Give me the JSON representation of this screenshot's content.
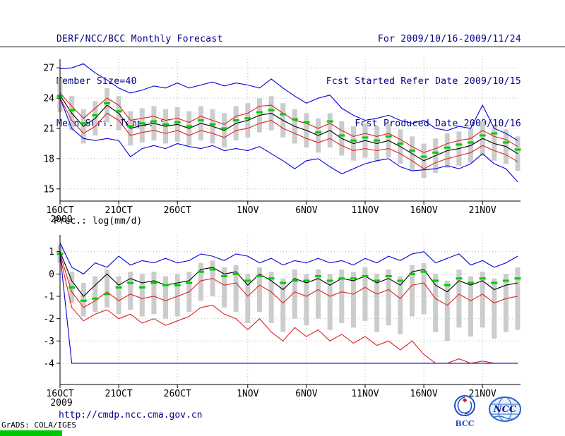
{
  "header": {
    "left": [
      "DERF/NCC/BCC Monthly Forecast",
      "Member Size=40",
      "Mean Surf. Temp.: °C"
    ],
    "right": [
      "For 2009/10/16-2009/11/24",
      "Fcst Started Refer Date 2009/10/15",
      "Fcst Produced Date 2009/10/16"
    ]
  },
  "footer": {
    "url": "http://cmdp.ncc.cma.gov.cn",
    "grads_credit": "GrADS: COLA/IGES",
    "logos": [
      {
        "name": "bcc-logo",
        "label": "BCC"
      },
      {
        "name": "ncc-logo",
        "label": "NCC"
      }
    ]
  },
  "colors": {
    "header_text": "#00008b",
    "url_text": "#00008b",
    "grid": "#b8b8b8",
    "axis": "#000000",
    "member_bar": "#cccccc",
    "mean_line": "#000000",
    "bound_red": "#dd2222",
    "extreme_blue": "#0000dd",
    "marker_green": "#00cc00",
    "stamp_green": "#00c800",
    "logo_blue": "#2050c0"
  },
  "chart_data": [
    {
      "name": "surface-temperature",
      "type": "line",
      "panel_label": "Mean Surf. Temp.: °C",
      "x_dates": [
        "16OCT",
        "17OCT",
        "18OCT",
        "19OCT",
        "20OCT",
        "21OCT",
        "22OCT",
        "23OCT",
        "24OCT",
        "25OCT",
        "26OCT",
        "27OCT",
        "28OCT",
        "29OCT",
        "30OCT",
        "31OCT",
        "1NOV",
        "2NOV",
        "3NOV",
        "4NOV",
        "5NOV",
        "6NOV",
        "7NOV",
        "8NOV",
        "9NOV",
        "10NOV",
        "11NOV",
        "12NOV",
        "13NOV",
        "14NOV",
        "15NOV",
        "16NOV",
        "17NOV",
        "18NOV",
        "19NOV",
        "20NOV",
        "21NOV",
        "22NOV",
        "23NOV",
        "24NOV"
      ],
      "x_tick_indices": [
        0,
        5,
        10,
        16,
        21,
        26,
        31,
        36
      ],
      "x_tick_labels": [
        "16OCT",
        "21OCT",
        "26OCT",
        "1NOV",
        "6NOV",
        "11NOV",
        "16NOV",
        "21NOV"
      ],
      "year_label": "2009",
      "ylim": [
        13.8,
        27.85
      ],
      "yticks": [
        15,
        18,
        21,
        24,
        27
      ],
      "grid": true,
      "series": [
        {
          "name": "ensemble-max",
          "color": "#0000dd",
          "values": [
            26.9,
            27.0,
            27.4,
            26.5,
            25.8,
            25.0,
            24.5,
            24.8,
            25.2,
            25.0,
            25.5,
            25.0,
            25.3,
            25.6,
            25.2,
            25.5,
            25.3,
            25.0,
            25.9,
            25.0,
            24.2,
            23.5,
            24.0,
            24.3,
            23.0,
            22.3,
            21.8,
            22.0,
            22.3,
            21.8,
            21.5,
            21.8,
            21.0,
            20.8,
            21.2,
            21.0,
            23.3,
            21.0,
            20.5,
            19.8
          ]
        },
        {
          "name": "upper-bound",
          "color": "#dd2222",
          "values": [
            24.5,
            23.2,
            22.0,
            23.0,
            24.0,
            23.3,
            21.8,
            22.0,
            22.2,
            21.8,
            22.0,
            21.6,
            22.2,
            21.8,
            21.4,
            22.2,
            22.5,
            23.2,
            23.3,
            22.5,
            21.8,
            21.5,
            21.0,
            21.5,
            20.8,
            20.2,
            20.5,
            20.2,
            20.5,
            19.9,
            19.2,
            18.6,
            19.0,
            19.5,
            19.8,
            20.0,
            20.8,
            20.2,
            19.9,
            19.2
          ]
        },
        {
          "name": "ensemble-mean",
          "color": "#000000",
          "values": [
            24.3,
            22.5,
            21.2,
            22.0,
            23.3,
            22.5,
            21.0,
            21.3,
            21.5,
            21.2,
            21.4,
            21.0,
            21.5,
            21.2,
            20.8,
            21.5,
            21.8,
            22.3,
            22.5,
            21.8,
            21.2,
            20.8,
            20.3,
            20.8,
            20.0,
            19.5,
            19.8,
            19.5,
            19.8,
            19.2,
            18.5,
            17.8,
            18.3,
            18.8,
            19.0,
            19.3,
            20.0,
            19.5,
            19.2,
            18.5
          ]
        },
        {
          "name": "lower-bound",
          "color": "#dd2222",
          "values": [
            24.0,
            21.8,
            20.5,
            21.2,
            22.5,
            21.8,
            20.3,
            20.6,
            20.8,
            20.5,
            20.8,
            20.3,
            20.8,
            20.5,
            20.1,
            20.8,
            21.0,
            21.5,
            21.8,
            21.0,
            20.5,
            20.0,
            19.6,
            20.0,
            19.3,
            18.8,
            19.0,
            18.8,
            19.0,
            18.5,
            17.8,
            17.0,
            17.6,
            18.0,
            18.3,
            18.6,
            19.3,
            18.8,
            18.4,
            17.7
          ]
        },
        {
          "name": "ensemble-min",
          "color": "#0000dd",
          "values": [
            24.0,
            21.0,
            20.0,
            19.8,
            20.0,
            19.8,
            18.2,
            19.0,
            19.3,
            19.0,
            19.5,
            19.2,
            19.0,
            19.3,
            18.8,
            19.0,
            18.8,
            19.2,
            18.5,
            17.8,
            17.0,
            17.8,
            18.0,
            17.2,
            16.5,
            17.0,
            17.5,
            17.8,
            18.0,
            17.2,
            16.8,
            16.9,
            17.0,
            17.3,
            17.0,
            17.5,
            18.5,
            17.5,
            17.0,
            15.7
          ]
        }
      ],
      "bars": {
        "name": "member-spread",
        "color": "#cccccc",
        "low": [
          22.6,
          20.8,
          19.5,
          20.3,
          21.6,
          20.8,
          19.3,
          19.6,
          19.8,
          19.5,
          19.7,
          19.3,
          19.8,
          19.5,
          19.1,
          19.8,
          20.1,
          20.6,
          20.8,
          20.1,
          19.5,
          19.1,
          18.6,
          19.1,
          18.3,
          17.8,
          18.1,
          17.8,
          18.1,
          17.5,
          16.8,
          16.1,
          16.6,
          17.1,
          17.3,
          17.6,
          18.3,
          17.8,
          17.5,
          16.8
        ],
        "high": [
          26.0,
          24.2,
          22.9,
          23.7,
          25.0,
          24.2,
          22.7,
          23.0,
          23.2,
          22.9,
          23.1,
          22.7,
          23.2,
          22.9,
          22.5,
          23.2,
          23.5,
          24.0,
          24.2,
          23.5,
          22.9,
          22.5,
          22.0,
          22.5,
          21.7,
          21.2,
          21.5,
          21.2,
          21.5,
          20.9,
          20.2,
          19.5,
          20.0,
          20.5,
          20.7,
          21.0,
          21.7,
          21.2,
          20.9,
          20.2
        ]
      },
      "markers": {
        "name": "green-median-marker",
        "color": "#00cc00",
        "values": [
          24.2,
          22.8,
          21.5,
          22.3,
          23.5,
          22.7,
          21.2,
          21.5,
          21.7,
          21.4,
          21.6,
          21.2,
          21.8,
          21.4,
          21.0,
          21.8,
          22.0,
          22.6,
          22.8,
          22.4,
          21.9,
          21.6,
          20.6,
          21.7,
          20.3,
          19.8,
          20.1,
          19.8,
          20.2,
          19.5,
          18.8,
          18.2,
          18.6,
          19.1,
          19.4,
          19.6,
          20.3,
          20.5,
          19.6,
          18.9
        ]
      },
      "layout": {
        "x0": 85,
        "x1": 733,
        "y_top": 84,
        "y_bottom": 285
      }
    },
    {
      "name": "precipitation",
      "type": "line",
      "panel_label": "Prec.: log(mm/d)",
      "x_dates": [
        "16OCT",
        "17OCT",
        "18OCT",
        "19OCT",
        "20OCT",
        "21OCT",
        "22OCT",
        "23OCT",
        "24OCT",
        "25OCT",
        "26OCT",
        "27OCT",
        "28OCT",
        "29OCT",
        "30OCT",
        "31OCT",
        "1NOV",
        "2NOV",
        "3NOV",
        "4NOV",
        "5NOV",
        "6NOV",
        "7NOV",
        "8NOV",
        "9NOV",
        "10NOV",
        "11NOV",
        "12NOV",
        "13NOV",
        "14NOV",
        "15NOV",
        "16NOV",
        "17NOV",
        "18NOV",
        "19NOV",
        "20NOV",
        "21NOV",
        "22NOV",
        "23NOV",
        "24NOV"
      ],
      "x_tick_indices": [
        0,
        5,
        10,
        16,
        21,
        26,
        31,
        36
      ],
      "x_tick_labels": [
        "16OCT",
        "21OCT",
        "26OCT",
        "1NOV",
        "6NOV",
        "11NOV",
        "16NOV",
        "21NOV"
      ],
      "year_label": "2009",
      "ylim": [
        -4.95,
        1.75
      ],
      "yticks": [
        -4,
        -3,
        -2,
        -1,
        0,
        1
      ],
      "grid": true,
      "series": [
        {
          "name": "ensemble-max",
          "color": "#0000dd",
          "values": [
            1.4,
            0.3,
            0.0,
            0.5,
            0.3,
            0.8,
            0.4,
            0.6,
            0.5,
            0.7,
            0.5,
            0.6,
            0.9,
            0.8,
            0.6,
            0.9,
            0.8,
            0.5,
            0.7,
            0.4,
            0.6,
            0.5,
            0.7,
            0.5,
            0.6,
            0.4,
            0.7,
            0.5,
            0.8,
            0.6,
            0.9,
            1.0,
            0.5,
            0.7,
            0.9,
            0.4,
            0.6,
            0.3,
            0.5,
            0.8
          ]
        },
        {
          "name": "ensemble-mean",
          "color": "#000000",
          "values": [
            1.0,
            -0.3,
            -1.0,
            -0.5,
            0.0,
            -0.5,
            -0.2,
            -0.4,
            -0.3,
            -0.5,
            -0.4,
            -0.3,
            0.2,
            0.3,
            0.0,
            0.1,
            -0.5,
            0.0,
            -0.3,
            -0.7,
            -0.2,
            -0.4,
            -0.2,
            -0.5,
            -0.2,
            -0.3,
            -0.1,
            -0.4,
            -0.2,
            -0.5,
            0.1,
            0.2,
            -0.5,
            -0.8,
            -0.3,
            -0.5,
            -0.3,
            -0.7,
            -0.5,
            -0.4
          ]
        },
        {
          "name": "upper-bound",
          "color": "#dd2222",
          "values": [
            0.9,
            -0.8,
            -1.5,
            -1.2,
            -0.8,
            -1.2,
            -0.9,
            -1.1,
            -1.0,
            -1.2,
            -1.0,
            -0.8,
            -0.3,
            -0.2,
            -0.5,
            -0.4,
            -1.0,
            -0.5,
            -0.8,
            -1.3,
            -0.8,
            -1.0,
            -0.7,
            -1.0,
            -0.8,
            -0.9,
            -0.6,
            -0.9,
            -0.7,
            -1.1,
            -0.5,
            -0.4,
            -1.1,
            -1.4,
            -0.9,
            -1.2,
            -0.9,
            -1.3,
            -1.1,
            -1.0
          ]
        },
        {
          "name": "lower-bound",
          "color": "#dd2222",
          "values": [
            0.8,
            -1.5,
            -2.1,
            -1.8,
            -1.6,
            -2.0,
            -1.8,
            -2.2,
            -2.0,
            -2.3,
            -2.1,
            -1.9,
            -1.5,
            -1.4,
            -1.8,
            -2.0,
            -2.5,
            -2.0,
            -2.6,
            -3.0,
            -2.4,
            -2.8,
            -2.5,
            -3.0,
            -2.7,
            -3.1,
            -2.8,
            -3.2,
            -3.0,
            -3.4,
            -3.0,
            -3.6,
            -4.0,
            -4.0,
            -3.8,
            -4.0,
            -3.9,
            -4.0,
            -4.0,
            -4.0
          ]
        },
        {
          "name": "ensemble-min",
          "color": "#0000dd",
          "values": [
            0.9,
            -4.0,
            -4.0,
            -4.0,
            -4.0,
            -4.0,
            -4.0,
            -4.0,
            -4.0,
            -4.0,
            -4.0,
            -4.0,
            -4.0,
            -4.0,
            -4.0,
            -4.0,
            -4.0,
            -4.0,
            -4.0,
            -4.0,
            -4.0,
            -4.0,
            -4.0,
            -4.0,
            -4.0,
            -4.0,
            -4.0,
            -4.0,
            -4.0,
            -4.0,
            -4.0,
            -4.0,
            -4.0,
            -4.0,
            -4.0,
            -4.0,
            -4.0,
            -4.0,
            -4.0,
            -4.0
          ]
        }
      ],
      "bars": {
        "name": "member-spread",
        "color": "#cccccc",
        "low": [
          0.5,
          -1.3,
          -1.9,
          -1.7,
          -1.5,
          -1.8,
          -1.6,
          -1.9,
          -1.8,
          -2.0,
          -1.9,
          -1.7,
          -1.2,
          -1.0,
          -1.5,
          -1.7,
          -2.2,
          -1.7,
          -2.2,
          -2.6,
          -2.0,
          -2.3,
          -2.0,
          -2.5,
          -2.2,
          -2.4,
          -2.1,
          -2.6,
          -2.3,
          -2.7,
          -1.9,
          -1.8,
          -2.6,
          -3.0,
          -2.4,
          -2.8,
          -2.4,
          -2.9,
          -2.6,
          -2.5
        ],
        "high": [
          1.3,
          0.1,
          -0.4,
          -0.1,
          0.2,
          -0.1,
          0.1,
          0.0,
          0.1,
          -0.1,
          0.0,
          0.1,
          0.5,
          0.6,
          0.3,
          0.4,
          0.0,
          0.3,
          0.1,
          -0.2,
          0.2,
          0.0,
          0.2,
          0.0,
          0.2,
          0.1,
          0.3,
          0.0,
          0.2,
          -0.1,
          0.4,
          0.5,
          0.0,
          -0.3,
          0.2,
          -0.1,
          0.1,
          -0.2,
          0.0,
          0.3
        ]
      },
      "markers": {
        "name": "green-median-marker",
        "color": "#00cc00",
        "values": [
          0.9,
          -0.6,
          -1.2,
          -1.1,
          -0.9,
          -0.6,
          -0.4,
          -0.6,
          -0.4,
          -0.5,
          -0.5,
          -0.4,
          0.1,
          0.2,
          -0.1,
          0.0,
          -0.3,
          -0.1,
          -0.2,
          -0.4,
          -0.3,
          -0.3,
          -0.1,
          -0.3,
          -0.2,
          -0.2,
          -0.1,
          -0.3,
          -0.1,
          -0.3,
          0.0,
          0.1,
          -0.3,
          -0.5,
          -0.2,
          -0.4,
          -0.2,
          -0.4,
          -0.3,
          -0.2
        ]
      },
      "layout": {
        "x0": 85,
        "x1": 733,
        "y_top": 333,
        "y_bottom": 545
      }
    }
  ]
}
